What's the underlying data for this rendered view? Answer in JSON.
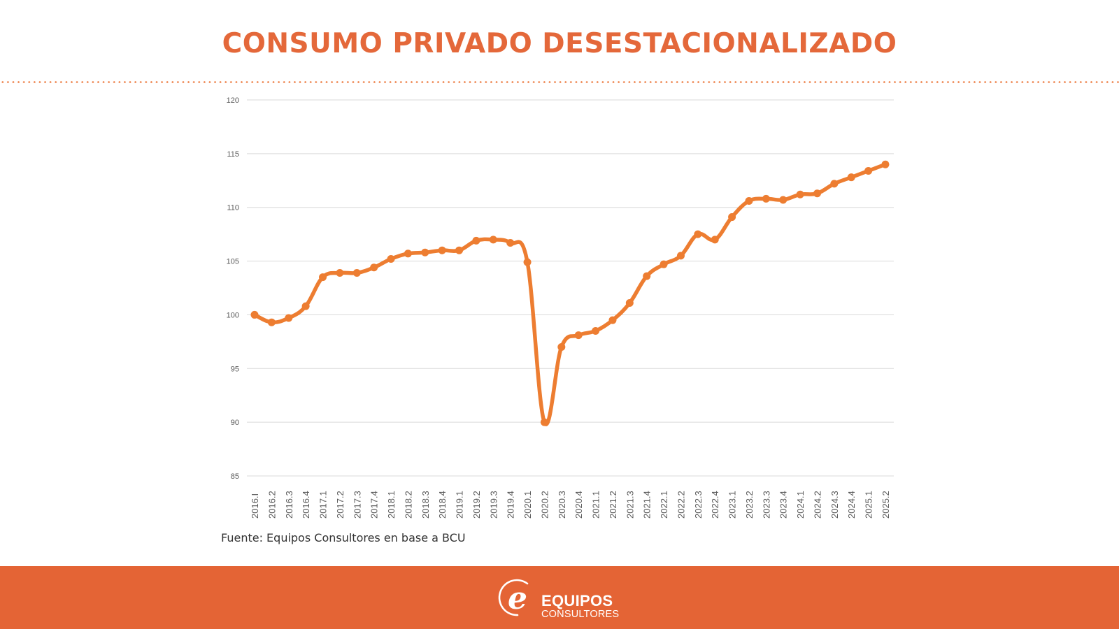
{
  "header": {
    "title": "CONSUMO PRIVADO DESESTACIONALIZADO"
  },
  "source": "Fuente: Equipos Consultores en base a BCU",
  "brand": {
    "name": "EQUIPOS",
    "subtitle": "CONSULTORES",
    "logo_letter": "e"
  },
  "colors": {
    "accent": "#E4683A",
    "line": "#ED7D31",
    "footer": "#E46435",
    "grid": "#D9D9D9"
  },
  "chart_data": {
    "type": "line",
    "title": "CONSUMO PRIVADO DESESTACIONALIZADO",
    "xlabel": "",
    "ylabel": "",
    "ylim": [
      85,
      120
    ],
    "yticks": [
      85,
      90,
      95,
      100,
      105,
      110,
      115,
      120
    ],
    "grid": true,
    "legend": "none",
    "categories": [
      "2016.I",
      "2016.2",
      "2016.3",
      "2016.4",
      "2017.1",
      "2017.2",
      "2017.3",
      "2017.4",
      "2018.1",
      "2018.2",
      "2018.3",
      "2018.4",
      "2019.1",
      "2019.2",
      "2019.3",
      "2019.4",
      "2020.1",
      "2020.2",
      "2020.3",
      "2020.4",
      "2021.1",
      "2021.2",
      "2021.3",
      "2021.4",
      "2022.1",
      "2022.2",
      "2022.3",
      "2022.4",
      "2023.1",
      "2023.2",
      "2023.3",
      "2023.4",
      "2024.1",
      "2024.2",
      "2024.3",
      "2024.4",
      "2025.1",
      "2025.2"
    ],
    "series": [
      {
        "name": "Consumo privado desestacionalizado",
        "values": [
          100.0,
          99.3,
          99.7,
          100.8,
          103.5,
          103.9,
          103.9,
          104.4,
          105.2,
          105.7,
          105.8,
          106.0,
          106.0,
          106.9,
          107.0,
          106.7,
          104.9,
          90.0,
          97.0,
          98.1,
          98.5,
          99.5,
          101.1,
          103.6,
          104.7,
          105.5,
          107.5,
          107.0,
          109.1,
          110.6,
          110.8,
          110.7,
          111.2,
          111.3,
          112.2,
          112.8,
          113.4,
          114.0
        ]
      }
    ]
  }
}
